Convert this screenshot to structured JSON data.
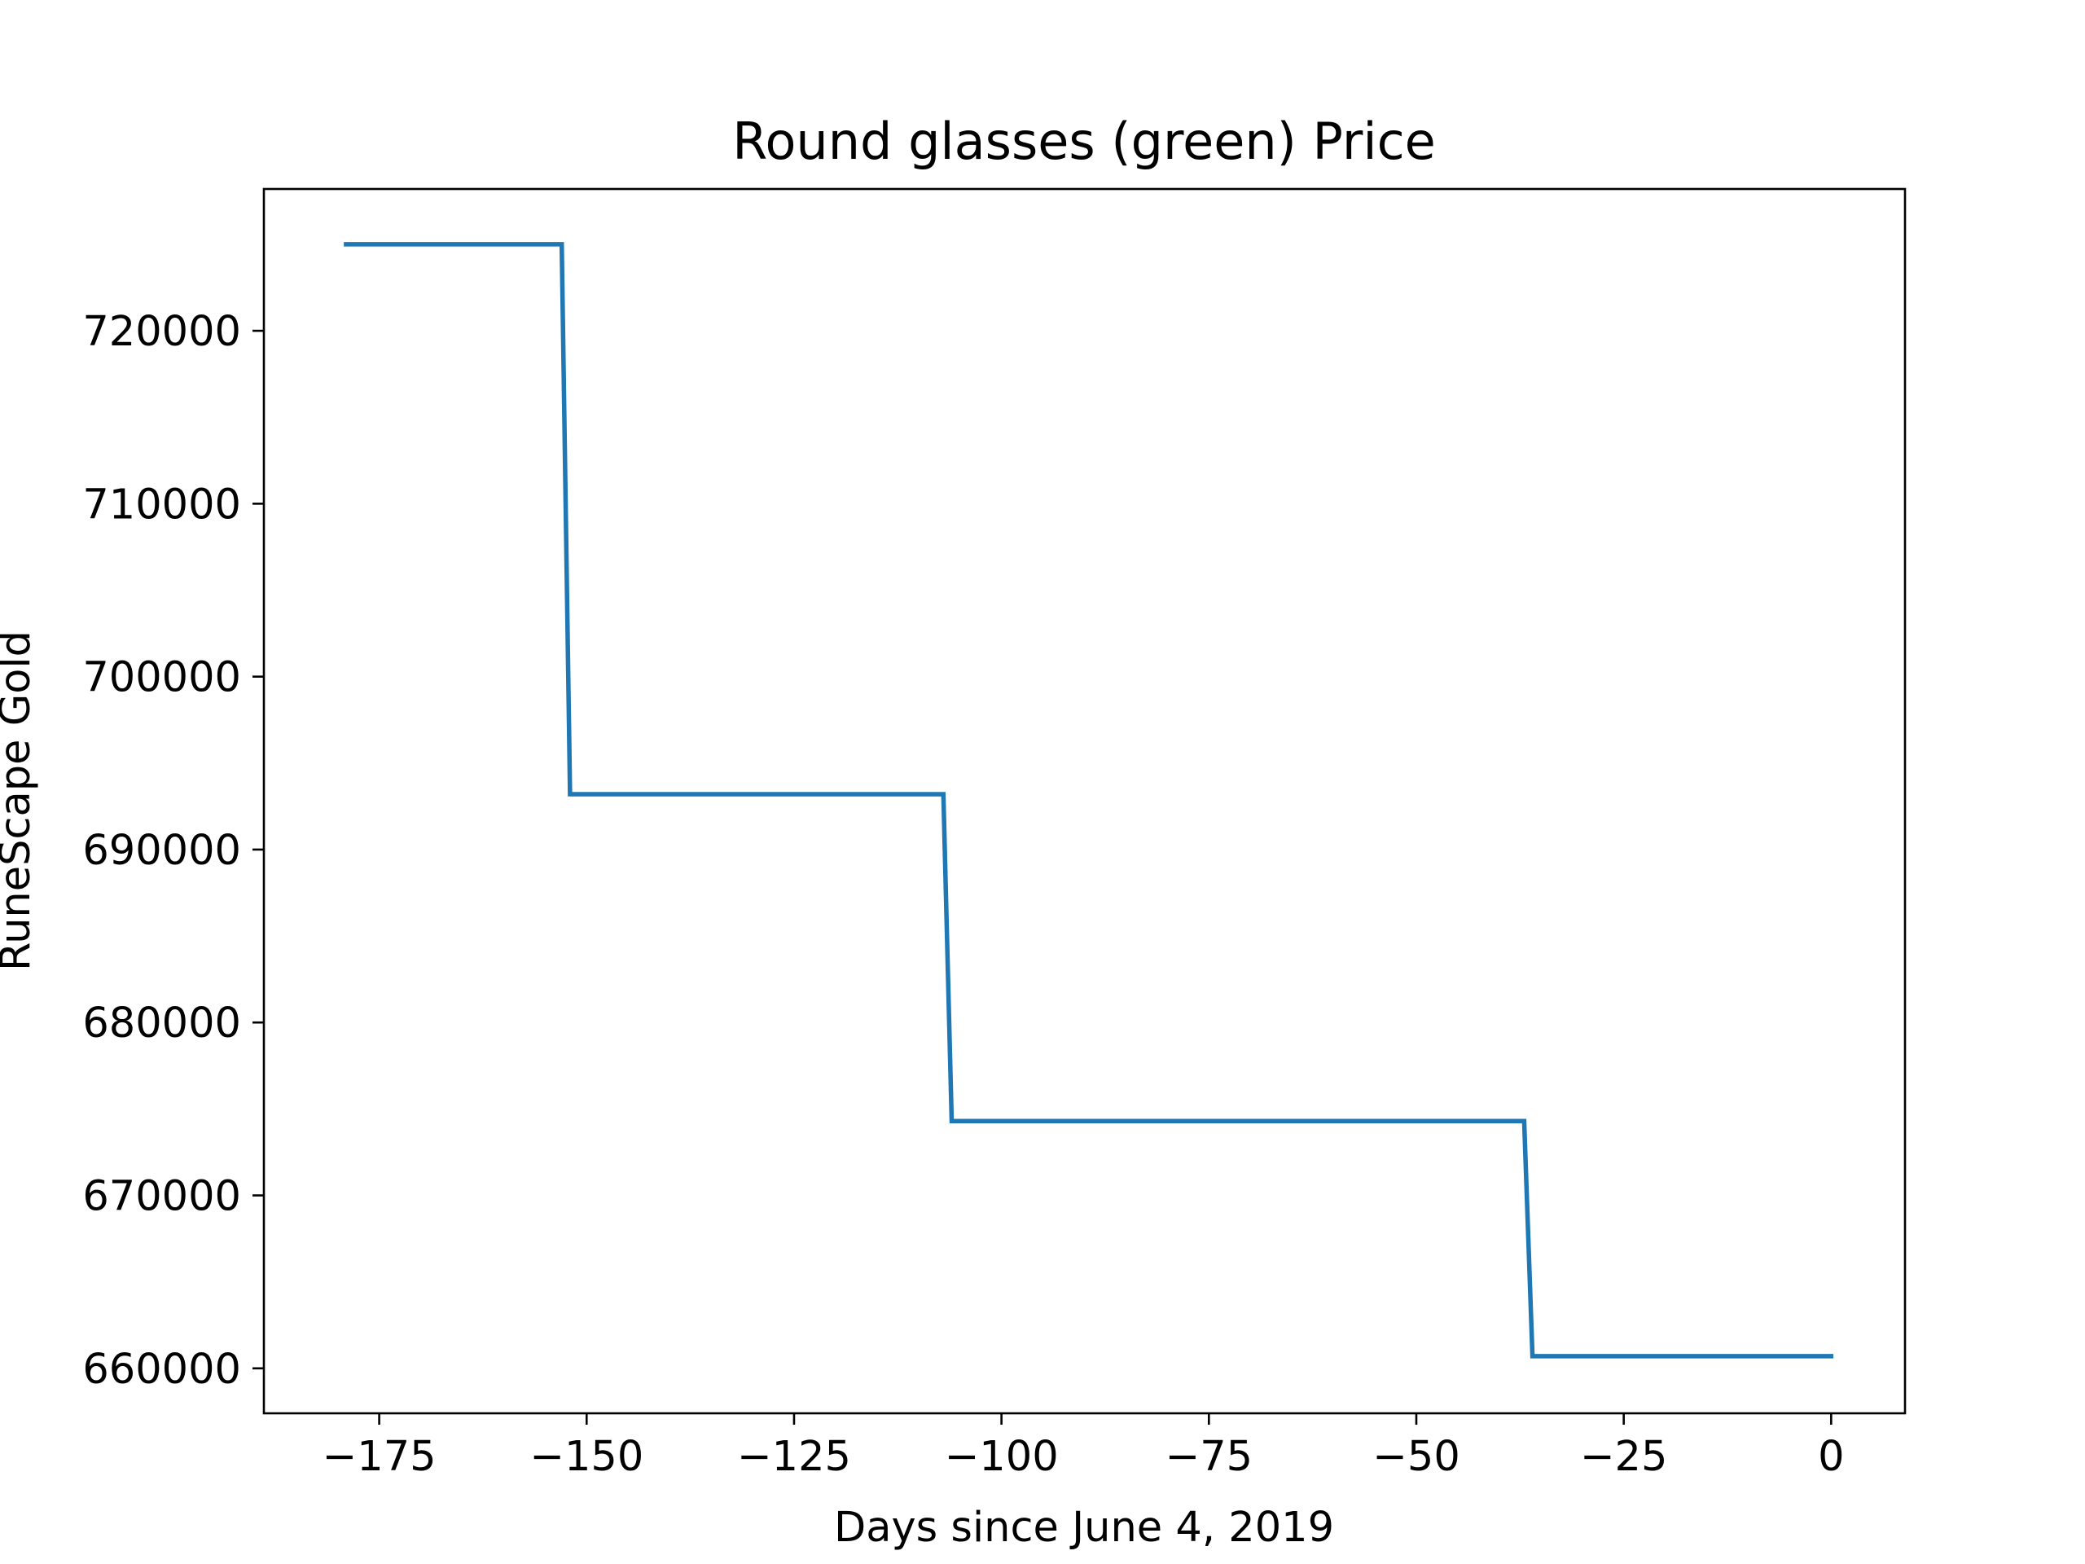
{
  "chart_data": {
    "type": "line",
    "title": "Round glasses (green) Price",
    "xlabel": "Days since June 4, 2019",
    "ylabel": "RuneScape Gold",
    "xlim": [
      -188.9,
      8.9
    ],
    "ylim": [
      657400,
      728200
    ],
    "xticks": [
      -175,
      -150,
      -125,
      -100,
      -75,
      -50,
      -25,
      0
    ],
    "xtick_labels": [
      "−175",
      "−150",
      "−125",
      "−100",
      "−75",
      "−50",
      "−25",
      "0"
    ],
    "yticks": [
      660000,
      670000,
      680000,
      690000,
      700000,
      710000,
      720000
    ],
    "ytick_labels": [
      "660000",
      "670000",
      "680000",
      "690000",
      "700000",
      "710000",
      "720000"
    ],
    "grid": false,
    "series": [
      {
        "color": "#1f77b4",
        "x": [
          -179,
          -153,
          -152,
          -107,
          -106,
          -37,
          -36,
          0
        ],
        "y": [
          725000,
          725000,
          693200,
          693200,
          674300,
          674300,
          660700,
          660700
        ]
      }
    ]
  }
}
